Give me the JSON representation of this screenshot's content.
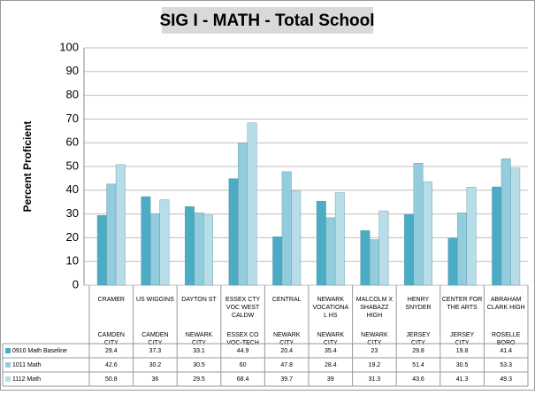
{
  "chart_data": {
    "type": "bar",
    "title": "SIG I - MATH - Total School",
    "y_label": "Percent Proficient",
    "categories": [
      "CRAMER",
      "US WIGGINS",
      "DAYTON ST",
      "ESSEX CTY VOC WEST CALDW",
      "CENTRAL",
      "NEWARK VOCATIONA L HS",
      "MALCOLM X SHABAZZ HIGH",
      "HENRY SNYDER",
      "CENTER FOR THE ARTS",
      "ABRAHAM CLARK HIGH"
    ],
    "districts": [
      "CAMDEN CITY",
      "CAMDEN CITY",
      "NEWARK CITY",
      "ESSEX CO VOC-TECH",
      "NEWARK CITY",
      "NEWARK CITY",
      "NEWARK CITY",
      "JERSEY CITY",
      "JERSEY CITY",
      "ROSELLE BORO"
    ],
    "series": [
      {
        "name": "0910 Math Baseline",
        "color": "#4bacc6",
        "values": [
          29.4,
          37.3,
          33.1,
          44.9,
          20.4,
          35.4,
          23,
          29.8,
          19.8,
          41.4
        ]
      },
      {
        "name": "1011 Math",
        "color": "#93cddd",
        "values": [
          42.6,
          30.2,
          30.5,
          60,
          47.8,
          28.4,
          19.2,
          51.4,
          30.5,
          53.3
        ]
      },
      {
        "name": "1112 Math",
        "color": "#b7dee8",
        "values": [
          50.8,
          36,
          29.5,
          68.4,
          39.7,
          39,
          31.3,
          43.6,
          41.3,
          49.3
        ]
      }
    ],
    "ylim": [
      0,
      100
    ],
    "yticks": [
      0,
      10,
      20,
      30,
      40,
      50,
      60,
      70,
      80,
      90,
      100
    ],
    "grid": true
  }
}
